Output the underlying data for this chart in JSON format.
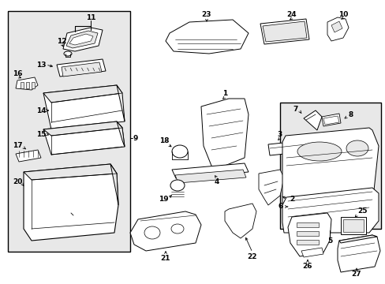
{
  "bg_color": "#ffffff",
  "fig_width": 4.89,
  "fig_height": 3.6,
  "dpi": 100,
  "gray_fill": "#e8e8e8"
}
